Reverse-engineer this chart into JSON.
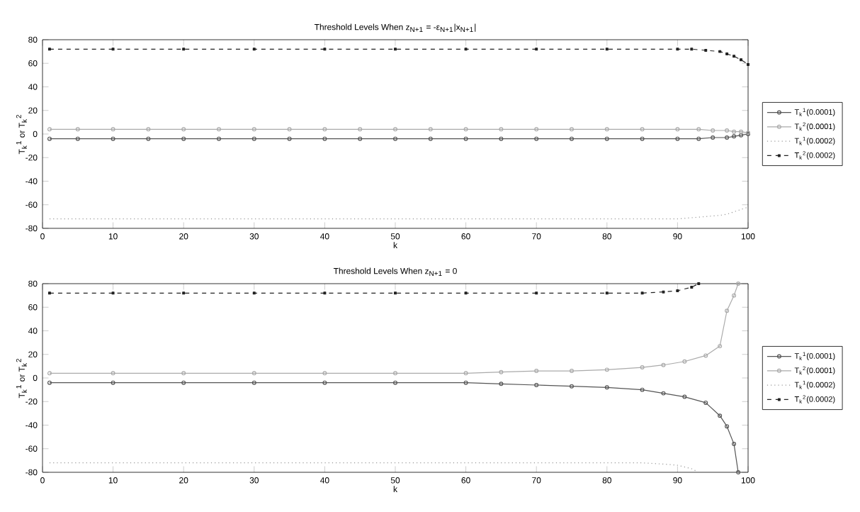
{
  "chart_data": [
    {
      "type": "line",
      "title": "Threshold Levels When z$_{N+1}$ = -ε$_{N+1}$|x$_{N+1}$|",
      "xlabel": "k",
      "ylabel": "T$_{k}$$^{1}$ or T$_{k}$$^{2}$",
      "xlim": [
        0,
        100
      ],
      "ylim": [
        -80,
        80
      ],
      "xticks": [
        0,
        10,
        20,
        30,
        40,
        50,
        60,
        70,
        80,
        90,
        100
      ],
      "yticks": [
        -80,
        -60,
        -40,
        -20,
        0,
        20,
        40,
        60,
        80
      ],
      "legend": "right",
      "grid": false,
      "series": [
        {
          "name": "T$_{k}$$^{1}$(0.0001)",
          "color": "#555555",
          "marker": "circle",
          "line_style": "solid",
          "x": [
            1,
            5,
            10,
            15,
            20,
            25,
            30,
            35,
            40,
            45,
            50,
            55,
            60,
            65,
            70,
            75,
            80,
            85,
            90,
            93,
            95,
            97,
            98,
            99,
            100
          ],
          "values": [
            -4,
            -4,
            -4,
            -4,
            -4,
            -4,
            -4,
            -4,
            -4,
            -4,
            -4,
            -4,
            -4,
            -4,
            -4,
            -4,
            -4,
            -4,
            -4,
            -4,
            -3,
            -3,
            -2,
            -1,
            0
          ]
        },
        {
          "name": "T$_{k}$$^{2}$(0.0001)",
          "color": "#aaaaaa",
          "marker": "circle",
          "line_style": "solid",
          "x": [
            1,
            5,
            10,
            15,
            20,
            25,
            30,
            35,
            40,
            45,
            50,
            55,
            60,
            65,
            70,
            75,
            80,
            85,
            90,
            93,
            95,
            97,
            98,
            99,
            100
          ],
          "values": [
            4,
            4,
            4,
            4,
            4,
            4,
            4,
            4,
            4,
            4,
            4,
            4,
            4,
            4,
            4,
            4,
            4,
            4,
            4,
            4,
            3,
            3,
            2,
            2,
            1
          ]
        },
        {
          "name": "T$_{k}$$^{1}$(0.0002)",
          "color": "#999999",
          "marker": "none",
          "line_style": "dotted",
          "x": [
            1,
            10,
            20,
            30,
            40,
            50,
            60,
            70,
            80,
            90,
            92,
            94,
            96,
            97,
            98,
            99,
            100
          ],
          "values": [
            -72,
            -72,
            -72,
            -72,
            -72,
            -72,
            -72,
            -72,
            -72,
            -72,
            -71,
            -70,
            -69,
            -68,
            -66,
            -64,
            -62
          ]
        },
        {
          "name": "T$_{k}$$^{2}$(0.0002)",
          "color": "#222222",
          "marker": "square",
          "line_style": "dashed",
          "x": [
            1,
            10,
            20,
            30,
            40,
            50,
            60,
            70,
            80,
            90,
            92,
            94,
            96,
            97,
            98,
            99,
            100
          ],
          "values": [
            72,
            72,
            72,
            72,
            72,
            72,
            72,
            72,
            72,
            72,
            72,
            71,
            70,
            68,
            66,
            63,
            59
          ]
        }
      ]
    },
    {
      "type": "line",
      "title": "Threshold Levels When z$_{N+1}$ = 0",
      "xlabel": "k",
      "ylabel": "T$_{k}$$^{1}$ or T$_{k}$$^{2}$",
      "xlim": [
        0,
        100
      ],
      "ylim": [
        -80,
        80
      ],
      "xticks": [
        0,
        10,
        20,
        30,
        40,
        50,
        60,
        70,
        80,
        90,
        100
      ],
      "yticks": [
        -80,
        -60,
        -40,
        -20,
        0,
        20,
        40,
        60,
        80
      ],
      "legend": "right",
      "grid": false,
      "series": [
        {
          "name": "T$_{k}$$^{1}$(0.0001)",
          "color": "#555555",
          "marker": "circle",
          "line_style": "solid",
          "x": [
            1,
            10,
            20,
            30,
            40,
            50,
            60,
            65,
            70,
            75,
            80,
            85,
            88,
            91,
            94,
            96,
            97,
            98,
            98.6
          ],
          "values": [
            -4,
            -4,
            -4,
            -4,
            -4,
            -4,
            -4,
            -5,
            -6,
            -7,
            -8,
            -10,
            -13,
            -16,
            -21,
            -32,
            -41,
            -56,
            -80
          ]
        },
        {
          "name": "T$_{k}$$^{2}$(0.0001)",
          "color": "#aaaaaa",
          "marker": "circle",
          "line_style": "solid",
          "x": [
            1,
            10,
            20,
            30,
            40,
            50,
            60,
            65,
            70,
            75,
            80,
            85,
            88,
            91,
            94,
            96,
            97,
            98,
            98.6
          ],
          "values": [
            4,
            4,
            4,
            4,
            4,
            4,
            4,
            5,
            6,
            6,
            7,
            9,
            11,
            14,
            19,
            27,
            57,
            70,
            80
          ]
        },
        {
          "name": "T$_{k}$$^{1}$(0.0002)",
          "color": "#999999",
          "marker": "none",
          "line_style": "dotted",
          "x": [
            1,
            10,
            20,
            30,
            40,
            50,
            60,
            70,
            80,
            85,
            88,
            90,
            92,
            93
          ],
          "values": [
            -72,
            -72,
            -72,
            -72,
            -72,
            -72,
            -72,
            -72,
            -72,
            -72,
            -73,
            -74,
            -77,
            -80
          ]
        },
        {
          "name": "T$_{k}$$^{2}$(0.0002)",
          "color": "#222222",
          "marker": "square",
          "line_style": "dashed",
          "x": [
            1,
            10,
            20,
            30,
            40,
            50,
            60,
            70,
            80,
            85,
            88,
            90,
            92,
            93
          ],
          "values": [
            72,
            72,
            72,
            72,
            72,
            72,
            72,
            72,
            72,
            72,
            73,
            74,
            77,
            80
          ]
        }
      ]
    }
  ]
}
